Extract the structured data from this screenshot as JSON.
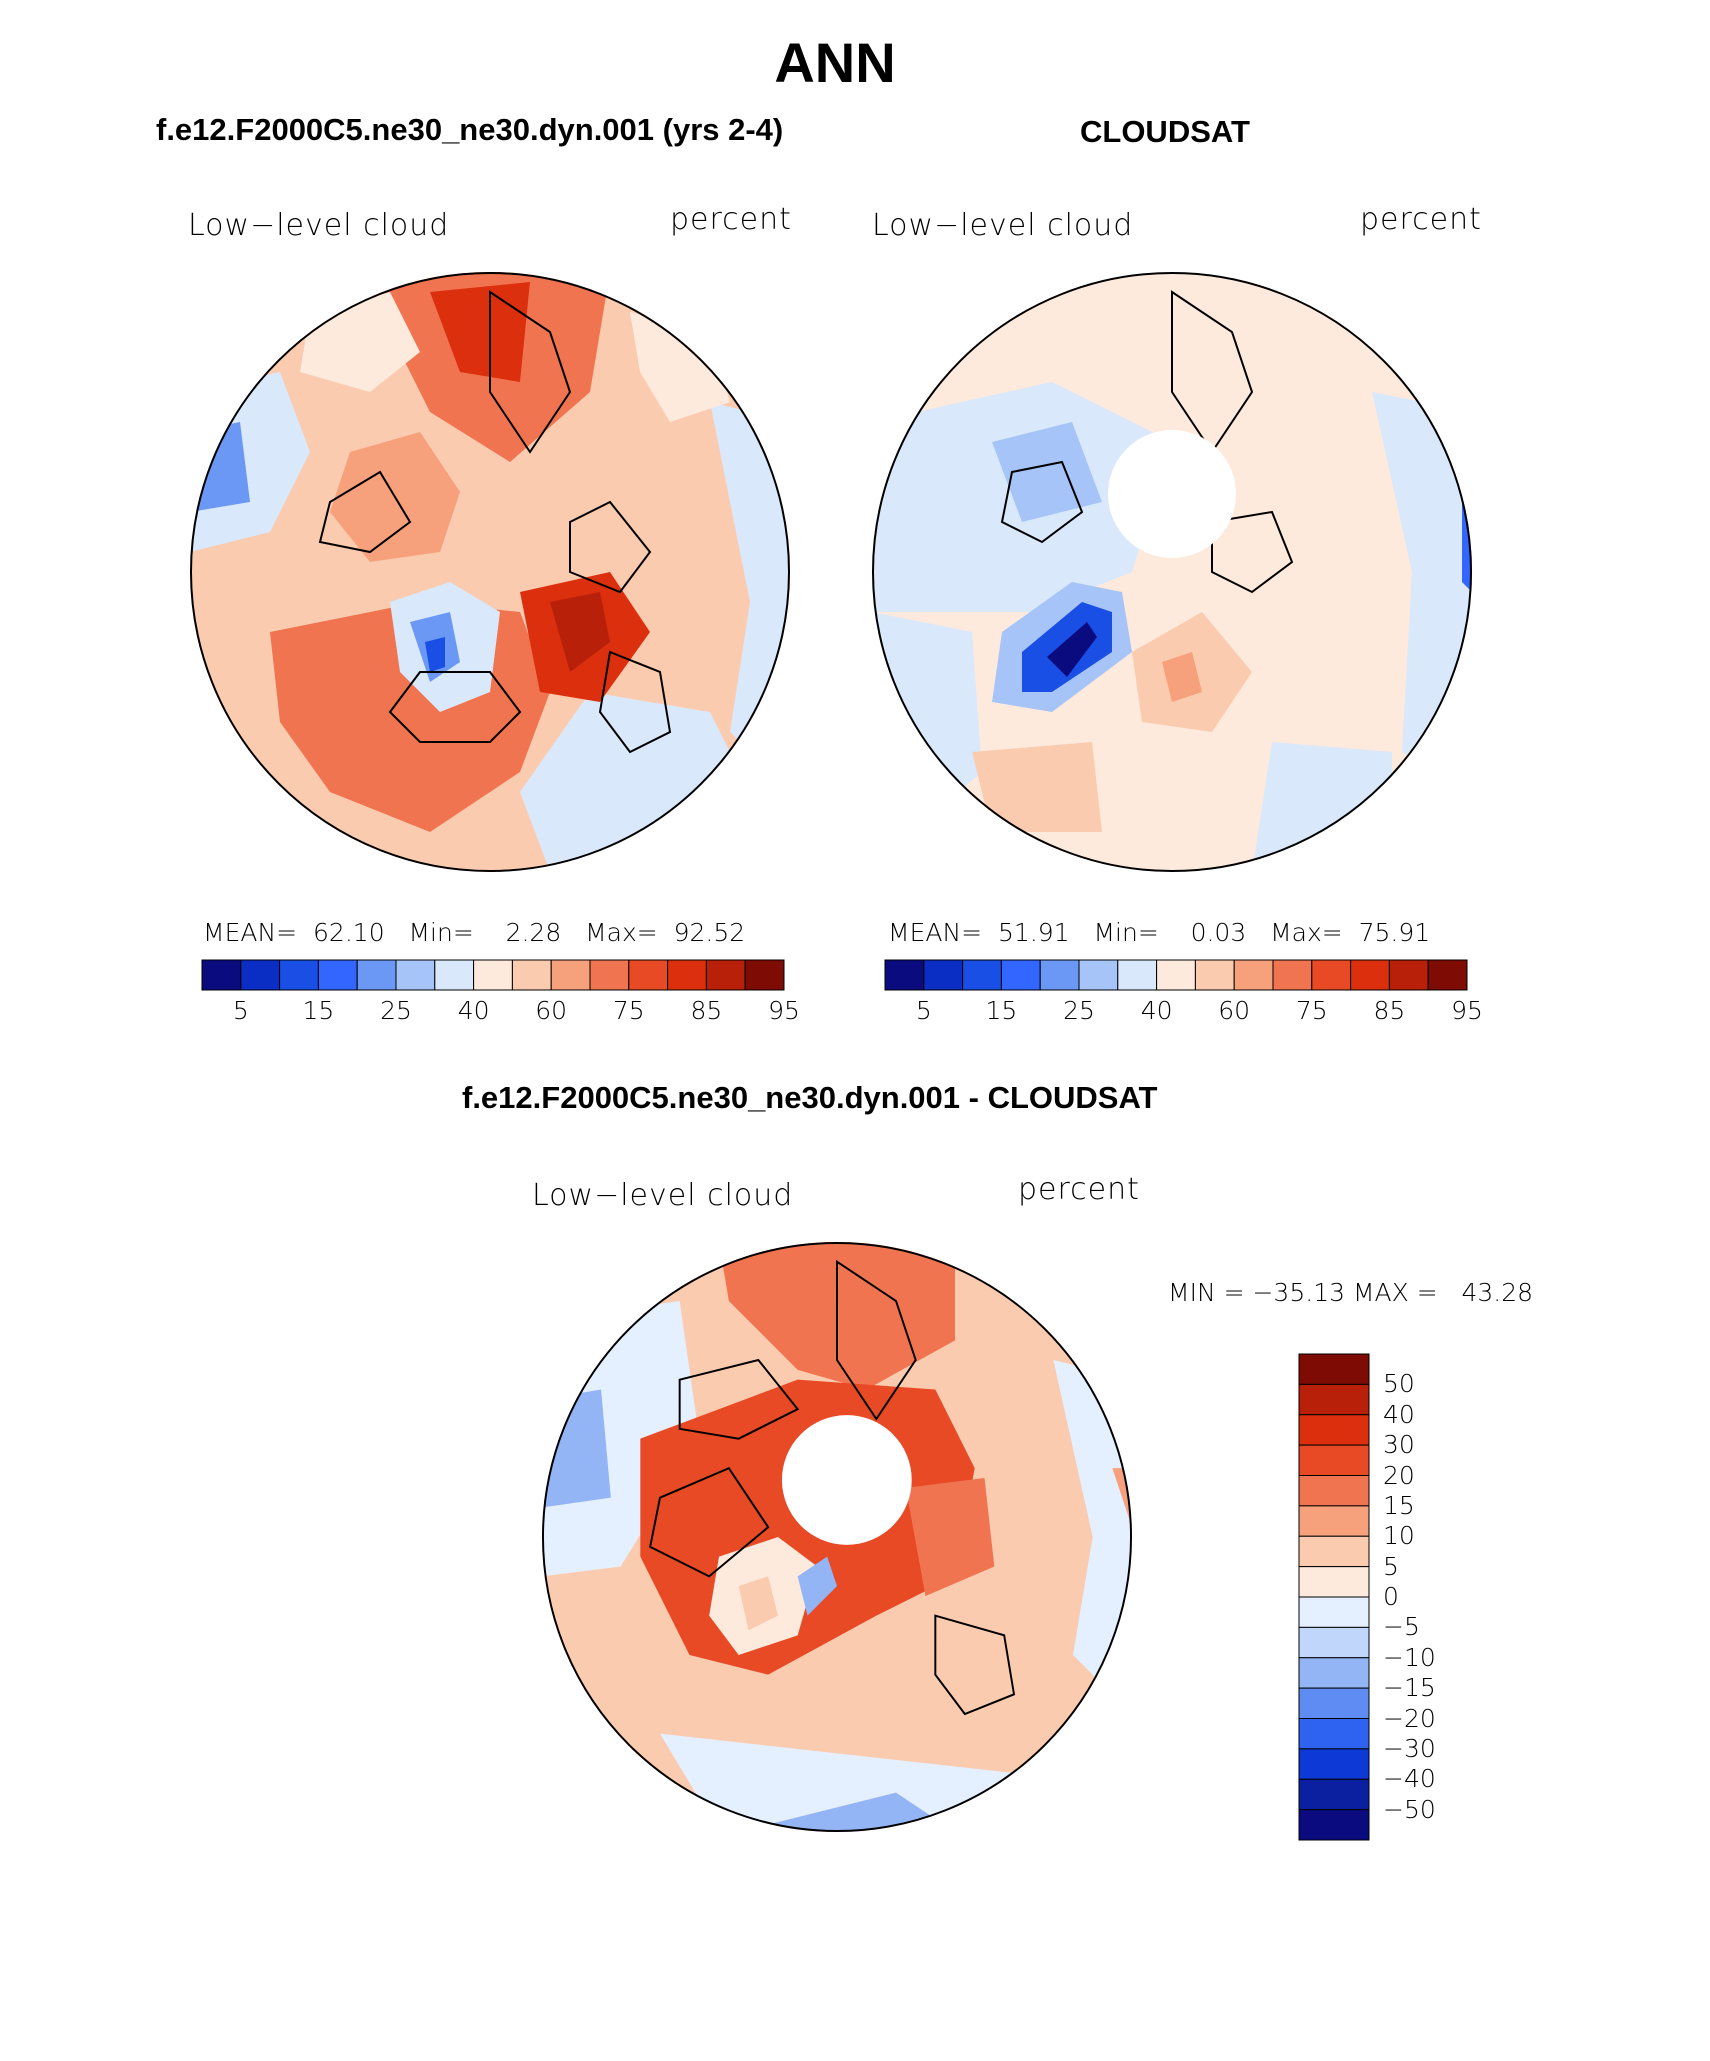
{
  "title": "ANN",
  "panels": [
    {
      "case_title": "f.e12.F2000C5.ne30_ne30.dyn.001 (yrs 2-4)",
      "variable": "Low−level cloud",
      "units": "percent",
      "stats": {
        "mean_label": "MEAN=",
        "mean": "62.10",
        "min_label": "Min=",
        "min": "2.28",
        "max_label": "Max=",
        "max": "92.52"
      }
    },
    {
      "case_title": "CLOUDSAT",
      "variable": "Low−level cloud",
      "units": "percent",
      "stats": {
        "mean_label": "MEAN=",
        "mean": "51.91",
        "min_label": "Min=",
        "min": "0.03",
        "max_label": "Max=",
        "max": "75.91"
      }
    },
    {
      "case_title": "f.e12.F2000C5.ne30_ne30.dyn.001 - CLOUDSAT",
      "variable": "Low−level cloud",
      "units": "percent",
      "minmax": "MIN = −35.13 MAX =   43.28"
    }
  ],
  "colorbar_abs": {
    "tick_labels": [
      "5",
      "15",
      "25",
      "40",
      "60",
      "75",
      "85",
      "95"
    ],
    "colors": [
      "#0b0b80",
      "#0a2ec4",
      "#1a4fe6",
      "#3366ff",
      "#6b97f5",
      "#a6c4f7",
      "#d9e8fb",
      "#fdeadc",
      "#fbcbb0",
      "#f7a07c",
      "#f07450",
      "#e84a25",
      "#dc2f0e",
      "#b8200a",
      "#7f0b05"
    ]
  },
  "colorbar_diff": {
    "tick_labels": [
      "50",
      "40",
      "30",
      "20",
      "15",
      "10",
      "5",
      "0",
      "−5",
      "−10",
      "−15",
      "−20",
      "−30",
      "−40",
      "−50"
    ],
    "colors": [
      "#7f0b05",
      "#b8200a",
      "#dc2f0e",
      "#e84a25",
      "#f07450",
      "#f7a07c",
      "#fbcbb0",
      "#fdeadc",
      "#e4efff",
      "#c0d6fa",
      "#93b4f5",
      "#5e8cf2",
      "#2e62f0",
      "#0d3ad6",
      "#0a20a0",
      "#0b0b80"
    ]
  }
}
